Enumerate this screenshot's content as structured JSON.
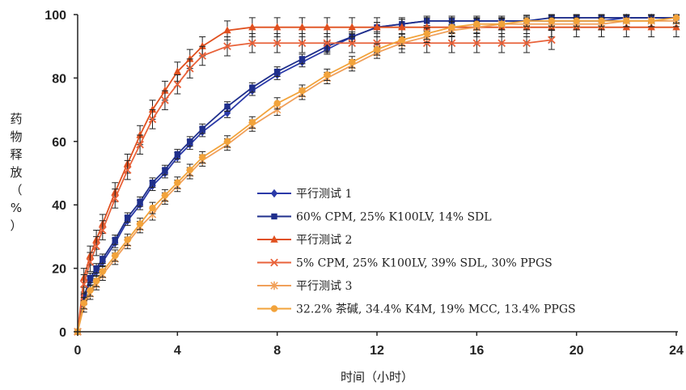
{
  "chart_data": {
    "type": "line",
    "xlabel": "时间（小时）",
    "ylabel": "药物释放（%）",
    "xlim": [
      0,
      24
    ],
    "ylim": [
      0,
      100
    ],
    "xticks": [
      "0",
      "4",
      "8",
      "12",
      "16",
      "20",
      "24"
    ],
    "yticks": [
      "0",
      "20",
      "40",
      "60",
      "80",
      "100"
    ],
    "grid": false,
    "legend_position": "center-right",
    "series": [
      {
        "name": "平行测试 1",
        "color": "#2b3aa8",
        "marker": "diamond",
        "x": [
          0,
          0.25,
          0.5,
          0.75,
          1,
          1.5,
          2,
          2.5,
          3,
          3.5,
          4,
          4.5,
          5,
          6,
          7,
          8,
          9,
          10,
          11,
          12,
          13,
          14,
          15,
          16,
          17,
          18,
          19,
          20,
          21,
          22,
          23,
          24
        ],
        "y": [
          0,
          10,
          16,
          19,
          22,
          28,
          35,
          40,
          46,
          50,
          55,
          59,
          63,
          69,
          76,
          81,
          85,
          89,
          93,
          96,
          97,
          98,
          98,
          98,
          98,
          98,
          98,
          98,
          98,
          99,
          99,
          99
        ],
        "err": 1.5
      },
      {
        "name": "60% CPM, 25% K100LV, 14% SDL",
        "color": "#1f2f8c",
        "marker": "square",
        "x": [
          0,
          0.25,
          0.5,
          0.75,
          1,
          1.5,
          2,
          2.5,
          3,
          3.5,
          4,
          4.5,
          5,
          6,
          7,
          8,
          9,
          10,
          11,
          12,
          13,
          14,
          15,
          16,
          17,
          18,
          19,
          20,
          21,
          22,
          23,
          24
        ],
        "y": [
          0,
          11,
          17,
          20,
          23,
          29,
          36,
          41,
          47,
          51,
          56,
          60,
          64,
          71,
          77,
          82,
          86,
          90,
          93,
          96,
          97,
          98,
          98,
          98,
          98,
          98,
          99,
          99,
          99,
          99,
          99,
          99
        ],
        "err": 1.5
      },
      {
        "name": "平行测试 2",
        "color": "#e0501f",
        "marker": "triangle",
        "x": [
          0,
          0.25,
          0.5,
          0.75,
          1,
          1.5,
          2,
          2.5,
          3,
          3.5,
          4,
          4.5,
          5,
          6,
          7,
          8,
          9,
          10,
          11,
          12,
          13,
          14,
          15,
          16,
          17,
          18,
          19,
          20,
          21,
          22,
          23,
          24
        ],
        "y": [
          0,
          17,
          24,
          29,
          34,
          44,
          53,
          62,
          70,
          76,
          82,
          86,
          90,
          95,
          96,
          96,
          96,
          96,
          96,
          96,
          96,
          96,
          96,
          96,
          96,
          96,
          96,
          96,
          96,
          96,
          96,
          96
        ],
        "err": 3
      },
      {
        "name": "5% CPM, 25% K100LV, 39% SDL, 30% PPGS",
        "color": "#e8623a",
        "marker": "x",
        "x": [
          0,
          0.25,
          0.5,
          0.75,
          1,
          1.5,
          2,
          2.5,
          3,
          3.5,
          4,
          4.5,
          5,
          6,
          7,
          8,
          9,
          10,
          11,
          12,
          13,
          14,
          15,
          16,
          17,
          18,
          19
        ],
        "y": [
          0,
          15,
          22,
          27,
          32,
          42,
          51,
          59,
          67,
          73,
          78,
          83,
          87,
          90,
          91,
          91,
          91,
          91,
          91,
          91,
          91,
          91,
          91,
          91,
          91,
          91,
          92
        ],
        "err": 3
      },
      {
        "name": "平行测试 3",
        "color": "#f0a05a",
        "marker": "star",
        "x": [
          0,
          0.25,
          0.5,
          0.75,
          1,
          1.5,
          2,
          2.5,
          3,
          3.5,
          4,
          4.5,
          5,
          6,
          7,
          8,
          9,
          10,
          11,
          12,
          13,
          14,
          15,
          16,
          17,
          18,
          19,
          20,
          21,
          22,
          23,
          24
        ],
        "y": [
          0,
          8,
          12,
          15,
          18,
          23,
          28,
          33,
          37,
          42,
          46,
          50,
          54,
          59,
          65,
          70,
          75,
          80,
          84,
          88,
          91,
          93,
          95,
          96,
          97,
          97,
          97,
          97,
          97,
          98,
          98,
          98
        ],
        "err": 1.8
      },
      {
        "name": "32.2% 茶碱, 34.4% K4M, 19% MCC, 13.4% PPGS",
        "color": "#f2a33b",
        "marker": "circle",
        "x": [
          0,
          0.25,
          0.5,
          0.75,
          1,
          1.5,
          2,
          2.5,
          3,
          3.5,
          4,
          4.5,
          5,
          6,
          7,
          8,
          9,
          10,
          11,
          12,
          13,
          14,
          15,
          16,
          17,
          18,
          19,
          20,
          21,
          22,
          23,
          24
        ],
        "y": [
          0,
          9,
          13,
          16,
          19,
          24,
          29,
          34,
          39,
          43,
          47,
          51,
          55,
          60,
          66,
          72,
          76,
          81,
          85,
          89,
          92,
          94,
          96,
          97,
          97,
          98,
          98,
          98,
          98,
          98,
          98,
          99
        ],
        "err": 1.8
      }
    ]
  }
}
